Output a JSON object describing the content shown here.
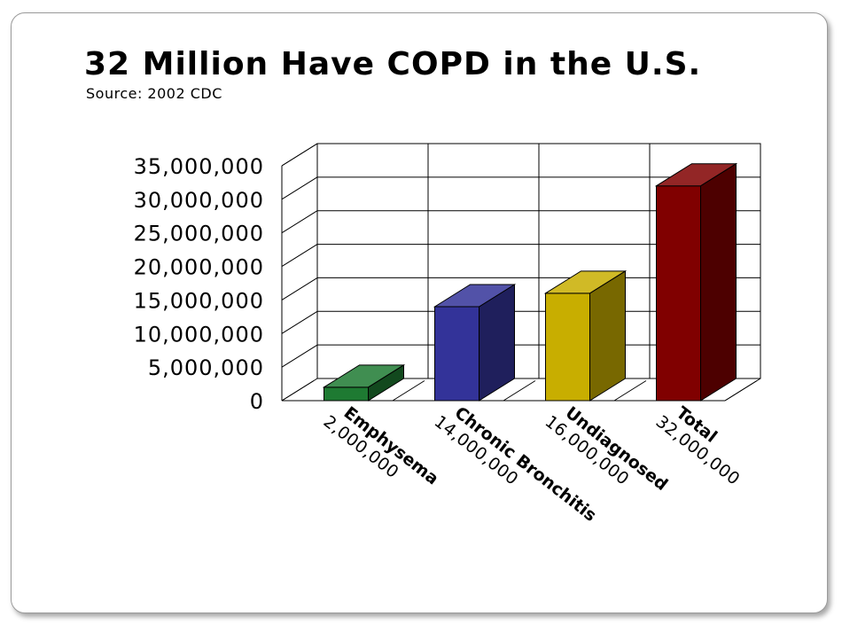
{
  "chart_data": {
    "type": "bar",
    "title": "32 Million Have COPD in the U.S.",
    "subtitle": "Source: 2002 CDC",
    "xlabel": "",
    "ylabel": "",
    "ylim": [
      0,
      35000000
    ],
    "yticks": [
      "0",
      "5,000,000",
      "10,000,000",
      "15,000,000",
      "20,000,000",
      "25,000,000",
      "30,000,000",
      "35,000,000"
    ],
    "categories": [
      "Emphysema",
      "Chronic Bronchitis",
      "Undiagnosed",
      "Total"
    ],
    "values": [
      2000000,
      14000000,
      16000000,
      32000000
    ],
    "data_labels": [
      "2,000,000",
      "14,000,000",
      "16,000,000",
      "32,000,000"
    ],
    "colors": [
      "#1e7a32",
      "#333399",
      "#c8ae00",
      "#800000"
    ],
    "grid": true,
    "style": "3d"
  }
}
